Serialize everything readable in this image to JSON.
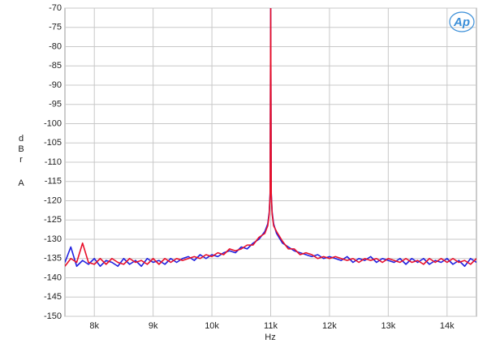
{
  "chart_data": {
    "type": "line",
    "logo": "Ap",
    "x_label": "Hz",
    "y_label": [
      "dBr",
      "A"
    ],
    "xlim": [
      7500,
      14500
    ],
    "xticks": [
      {
        "value": 8000,
        "label": "8k"
      },
      {
        "value": 9000,
        "label": "9k"
      },
      {
        "value": 10000,
        "label": "10k"
      },
      {
        "value": 11000,
        "label": "11k"
      },
      {
        "value": 12000,
        "label": "12k"
      },
      {
        "value": 13000,
        "label": "13k"
      },
      {
        "value": 14000,
        "label": "14k"
      }
    ],
    "ylim": [
      -150,
      -70
    ],
    "yticks": [
      -70,
      -75,
      -80,
      -85,
      -90,
      -95,
      -100,
      -105,
      -110,
      -115,
      -120,
      -125,
      -130,
      -135,
      -140,
      -145,
      -150
    ],
    "grid": true,
    "x": [
      7500,
      7600,
      7700,
      7800,
      7900,
      8000,
      8100,
      8200,
      8300,
      8400,
      8500,
      8600,
      8700,
      8800,
      8900,
      9000,
      9100,
      9200,
      9300,
      9400,
      9500,
      9600,
      9700,
      9800,
      9900,
      10000,
      10100,
      10200,
      10300,
      10400,
      10500,
      10600,
      10700,
      10800,
      10900,
      10950,
      10975,
      10990,
      11000,
      11010,
      11025,
      11050,
      11100,
      11200,
      11300,
      11400,
      11500,
      11600,
      11700,
      11800,
      11900,
      12000,
      12100,
      12200,
      12300,
      12400,
      12500,
      12600,
      12700,
      12800,
      12900,
      13000,
      13100,
      13200,
      13300,
      13400,
      13500,
      13600,
      13700,
      13800,
      13900,
      14000,
      14100,
      14200,
      14300,
      14400,
      14500
    ],
    "series": [
      {
        "color": "#2020e0",
        "values": [
          -136,
          -132,
          -137,
          -135.5,
          -136.5,
          -135,
          -137,
          -135.5,
          -136,
          -137,
          -135,
          -136.5,
          -135.5,
          -137,
          -135,
          -136,
          -135.5,
          -136.5,
          -135,
          -136,
          -135,
          -134.5,
          -135.5,
          -134,
          -135,
          -134,
          -134.5,
          -133.5,
          -133,
          -133.5,
          -132,
          -132.5,
          -131,
          -130,
          -128,
          -126,
          -123,
          -118,
          -70,
          -118,
          -123,
          -126,
          -128.5,
          -131,
          -132,
          -133,
          -133.5,
          -134,
          -134.5,
          -134,
          -135,
          -134.5,
          -135,
          -135.5,
          -134.5,
          -136,
          -135,
          -135.5,
          -134.5,
          -136,
          -135,
          -135.5,
          -136,
          -135,
          -136.5,
          -135,
          -136,
          -135,
          -136.5,
          -135.5,
          -136,
          -135,
          -136.5,
          -135.5,
          -137,
          -135,
          -136
        ]
      },
      {
        "color": "#e8102a",
        "values": [
          -137,
          -135,
          -136,
          -131,
          -136,
          -136.5,
          -135,
          -136.5,
          -135,
          -136,
          -136.5,
          -135,
          -136,
          -135.5,
          -136.5,
          -135,
          -136.5,
          -135,
          -136,
          -135,
          -135.5,
          -135,
          -134.5,
          -135,
          -134,
          -134.5,
          -133.5,
          -134,
          -132.5,
          -133,
          -132.5,
          -131.5,
          -131.5,
          -129.5,
          -128.5,
          -126.5,
          -123.5,
          -118.5,
          -70,
          -118.5,
          -123.5,
          -126.5,
          -128,
          -130.5,
          -132.5,
          -132.5,
          -134,
          -133.5,
          -134,
          -135,
          -134.5,
          -135,
          -134.5,
          -135,
          -135.5,
          -135,
          -136,
          -135,
          -135.5,
          -135,
          -136,
          -135,
          -135.5,
          -136,
          -135,
          -136,
          -135.5,
          -136.5,
          -135,
          -136,
          -135,
          -136,
          -135,
          -136,
          -135.5,
          -136.5,
          -135
        ]
      }
    ]
  }
}
